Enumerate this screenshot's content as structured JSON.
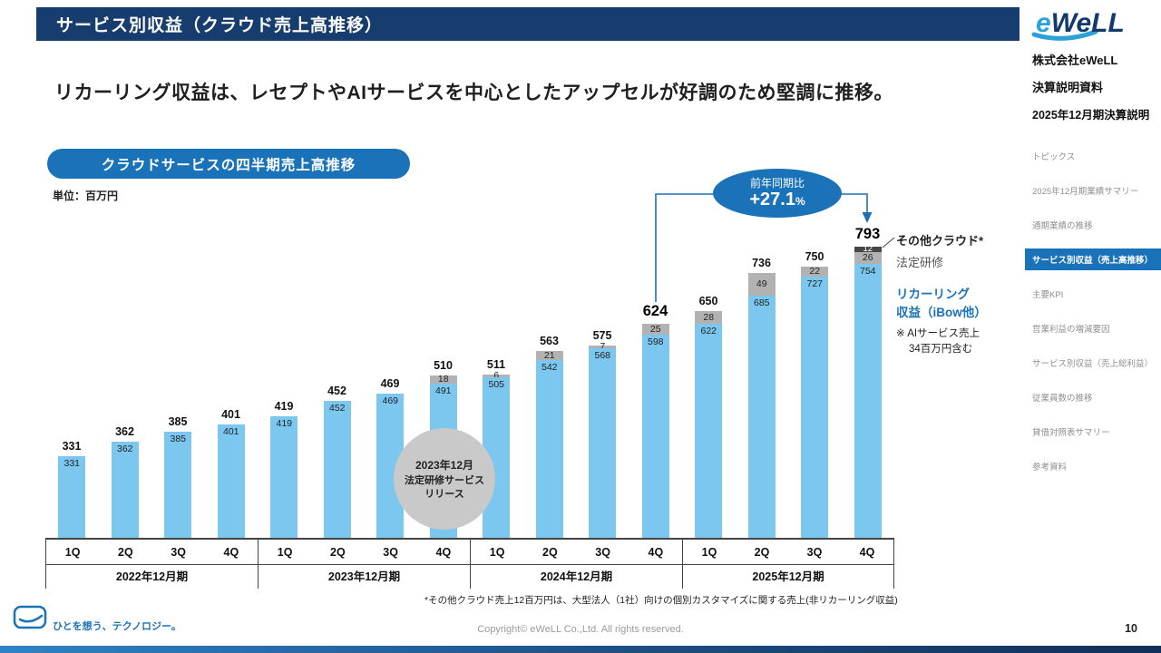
{
  "header": {
    "title": "サービス別収益（クラウド売上高推移）"
  },
  "logo": {
    "e": "e",
    "rest": "WeLL"
  },
  "sidebar": {
    "company": "株式会社eWeLL",
    "doc_line1": "決算説明資料",
    "doc_line2": "2025年12月期決算説明",
    "items": [
      {
        "label": "トピックス",
        "active": false
      },
      {
        "label": "2025年12月期業績サマリー",
        "active": false
      },
      {
        "label": "通期業績の推移",
        "active": false
      },
      {
        "label": "サービス別収益（売上高推移）",
        "active": true
      },
      {
        "label": "主要KPI",
        "active": false
      },
      {
        "label": "営業利益の増減要因",
        "active": false
      },
      {
        "label": "サービス別収益（売上総利益）",
        "active": false
      },
      {
        "label": "従業員数の推移",
        "active": false
      },
      {
        "label": "貸借対照表サマリー",
        "active": false
      },
      {
        "label": "参考資料",
        "active": false
      }
    ]
  },
  "main": {
    "headline": "リカーリング収益は、レセプトやAIサービスを中心としたアップセルが好調のため堅調に推移。",
    "chart_title_badge": "クラウドサービスの四半期売上高推移",
    "unit": "単位：百万円",
    "callout": {
      "label": "前年同期比",
      "value": "+27.1",
      "pct": "%"
    },
    "release_bubble": [
      "2023年12月",
      "法定研修サービス",
      "リリース"
    ],
    "legend": {
      "other": "その他クラウド*",
      "training": "法定研修",
      "recurring_l1": "リカーリング",
      "recurring_l2": "収益（iBow他）",
      "note_l1": "※ AIサービス売上",
      "note_l2": "34百万円含む"
    },
    "footnote": "*その他クラウド売上12百万円は、大型法人（1社）向けの個別カスタマイズに関する売上(非リカーリング収益)"
  },
  "chart_data": {
    "type": "bar",
    "stacked": true,
    "title": "クラウドサービスの四半期売上高推移",
    "unit": "百万円",
    "ylim": [
      0,
      850
    ],
    "legend": [
      "リカーリング収益（iBow他）",
      "法定研修",
      "その他クラウド"
    ],
    "colors": {
      "recurring": "#7cc7ef",
      "training": "#b2b2b2",
      "other": "#474747"
    },
    "groups": [
      {
        "year": "2022年12月期",
        "bars": [
          {
            "quarter": "1Q",
            "total": 331,
            "recurring": 331
          },
          {
            "quarter": "2Q",
            "total": 362,
            "recurring": 362
          },
          {
            "quarter": "3Q",
            "total": 385,
            "recurring": 385
          },
          {
            "quarter": "4Q",
            "total": 401,
            "recurring": 401
          }
        ]
      },
      {
        "year": "2023年12月期",
        "bars": [
          {
            "quarter": "1Q",
            "total": 419,
            "recurring": 419
          },
          {
            "quarter": "2Q",
            "total": 452,
            "recurring": 452
          },
          {
            "quarter": "3Q",
            "total": 469,
            "recurring": 469
          },
          {
            "quarter": "4Q",
            "total": 510,
            "recurring": 491,
            "training": 18
          }
        ]
      },
      {
        "year": "2024年12月期",
        "bars": [
          {
            "quarter": "1Q",
            "total": 511,
            "recurring": 505,
            "training": 6
          },
          {
            "quarter": "2Q",
            "total": 563,
            "recurring": 542,
            "training": 21
          },
          {
            "quarter": "3Q",
            "total": 575,
            "recurring": 568,
            "training": 7
          },
          {
            "quarter": "4Q",
            "total": 624,
            "recurring": 598,
            "training": 25,
            "bold": true
          }
        ]
      },
      {
        "year": "2025年12月期",
        "bars": [
          {
            "quarter": "1Q",
            "total": 650,
            "recurring": 622,
            "training": 28
          },
          {
            "quarter": "2Q",
            "total": 736,
            "recurring": 685,
            "training": 49
          },
          {
            "quarter": "3Q",
            "total": 750,
            "recurring": 727,
            "training": 22
          },
          {
            "quarter": "4Q",
            "total": 793,
            "recurring": 754,
            "training": 26,
            "other": 12,
            "bold": true
          }
        ]
      }
    ],
    "yoy": {
      "label": "前年同期比",
      "value_pct": 27.1,
      "from": "2024年12月期 4Q 624",
      "to": "2025年12月期 4Q 793"
    },
    "annotation": "2023年12月 法定研修サービス リリース"
  },
  "footer": {
    "tagline": "ひとを想う、テクノロジー。",
    "copyright": "Copyright© eWeLL Co.,Ltd. All rights reserved.",
    "page": "10"
  }
}
